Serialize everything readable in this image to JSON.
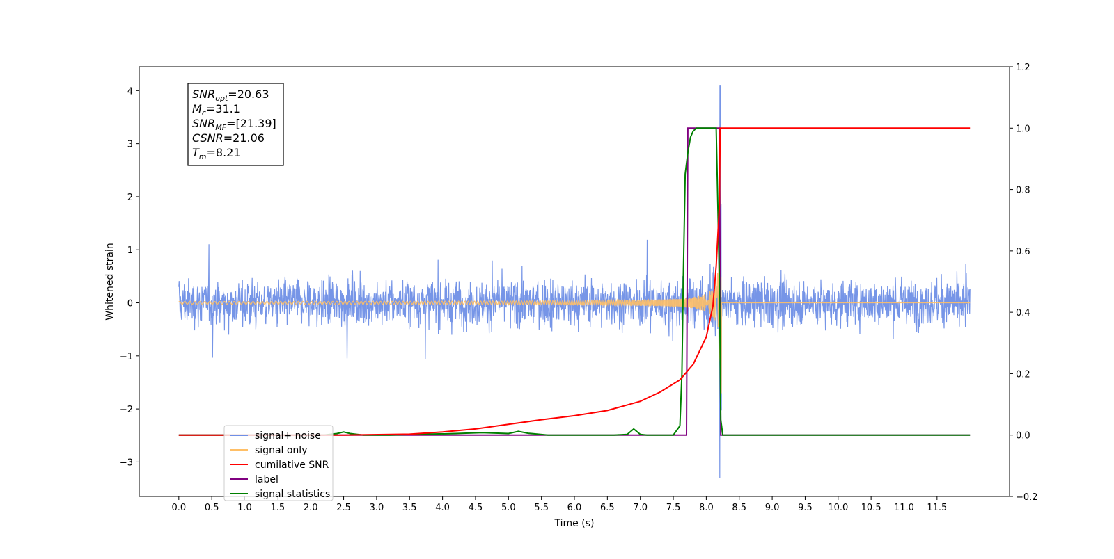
{
  "chart_data": {
    "type": "line",
    "xlabel": "Time (s)",
    "ylabel": "Whitened strain",
    "xlim": [
      -0.6,
      12.6
    ],
    "ylim": [
      -3.65,
      4.45
    ],
    "y2lim": [
      -0.2,
      1.2
    ],
    "x_ticks": [
      "0.0",
      "0.5",
      "1.0",
      "1.5",
      "2.0",
      "2.5",
      "3.0",
      "3.5",
      "4.0",
      "4.5",
      "5.0",
      "5.5",
      "6.0",
      "6.5",
      "7.0",
      "7.5",
      "8.0",
      "8.5",
      "9.0",
      "9.5",
      "10.0",
      "10.5",
      "11.0",
      "11.5"
    ],
    "y_ticks": [
      "−3",
      "−2",
      "−1",
      "0",
      "1",
      "2",
      "3",
      "4"
    ],
    "y2_ticks": [
      "−0.2",
      "0.0",
      "0.2",
      "0.4",
      "0.6",
      "0.8",
      "1.0",
      "1.2"
    ],
    "grid": false,
    "legend_position": "lower-left",
    "annotation": [
      {
        "main": "SNR",
        "sub": "opt",
        "value": "=20.63"
      },
      {
        "main": "M",
        "sub": "c",
        "value": "=31.1"
      },
      {
        "main": "SNR",
        "sub": "MF",
        "value": "=[21.39]"
      },
      {
        "main": "CSNR",
        "sub": "",
        "value": "=21.06"
      },
      {
        "main": "T",
        "sub": "m",
        "value": "=8.21"
      }
    ],
    "series": [
      {
        "name": "signal+ noise",
        "color": "#6f8fe6",
        "axis": "left",
        "noise_band": [
          -1.6,
          1.8
        ],
        "peak_value": 4.1,
        "peak_time": 8.21
      },
      {
        "name": "signal only",
        "color": "#ffbf66",
        "axis": "left",
        "start_amplitude": 0.02,
        "peak_amplitude": 1.8,
        "merger_time": 8.21
      },
      {
        "name": "cumilative SNR",
        "color": "#ff0000",
        "axis": "right",
        "x": [
          0.0,
          2.5,
          3.5,
          4.0,
          4.5,
          5.0,
          5.5,
          6.0,
          6.5,
          7.0,
          7.3,
          7.6,
          7.8,
          8.0,
          8.1,
          8.15,
          8.2,
          8.21,
          11.5,
          12.0
        ],
        "y": [
          0.0,
          0.0,
          0.003,
          0.01,
          0.02,
          0.035,
          0.05,
          0.063,
          0.08,
          0.11,
          0.14,
          0.18,
          0.23,
          0.32,
          0.42,
          0.55,
          0.75,
          1.0,
          1.0,
          1.0
        ]
      },
      {
        "name": "label",
        "color": "#800080",
        "axis": "right",
        "x": [
          0.0,
          7.7,
          7.72,
          8.2,
          8.22,
          12.0
        ],
        "y": [
          0.0,
          0.0,
          1.0,
          1.0,
          0.0,
          0.0
        ]
      },
      {
        "name": "signal statistics",
        "color": "#008000",
        "axis": "right",
        "x": [
          0.0,
          2.2,
          2.4,
          2.5,
          2.6,
          2.8,
          3.2,
          3.6,
          4.2,
          4.6,
          5.0,
          5.15,
          5.3,
          5.6,
          6.0,
          6.6,
          6.8,
          6.9,
          7.0,
          7.1,
          7.5,
          7.6,
          7.63,
          7.65,
          7.68,
          7.72,
          7.76,
          7.8,
          7.85,
          7.9,
          8.0,
          8.15,
          8.2,
          8.22,
          8.25,
          8.3,
          12.0
        ],
        "y": [
          0.0,
          0.0,
          0.005,
          0.01,
          0.005,
          0.0,
          0.0,
          0.002,
          0.005,
          0.008,
          0.005,
          0.012,
          0.006,
          0.0,
          0.0,
          0.0,
          0.002,
          0.02,
          0.002,
          0.0,
          0.0,
          0.03,
          0.2,
          0.5,
          0.85,
          0.92,
          0.97,
          0.99,
          1.0,
          1.0,
          1.0,
          1.0,
          0.5,
          0.05,
          0.0,
          0.0,
          0.0
        ]
      }
    ]
  }
}
